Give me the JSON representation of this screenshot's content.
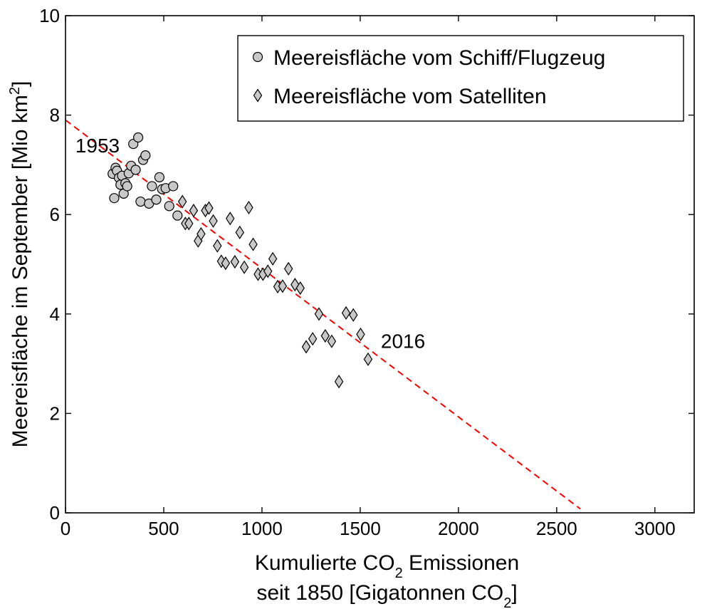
{
  "chart_data": {
    "type": "scatter",
    "xlabel_line1_parts": [
      "Kumulierte CO",
      "2",
      " Emissionen"
    ],
    "xlabel_line2_parts": [
      "seit 1850 [Gigatonnen CO",
      "2",
      "]"
    ],
    "ylabel_parts": [
      "Meereisfläche im September [Mio km",
      "2",
      "]"
    ],
    "xlim": [
      0,
      3200
    ],
    "ylim": [
      0,
      10
    ],
    "xticks": [
      0,
      500,
      1000,
      1500,
      2000,
      2500,
      3000
    ],
    "yticks": [
      0,
      2,
      4,
      6,
      8,
      10
    ],
    "xtick_labels": [
      "0",
      "500",
      "1000",
      "1500",
      "2000",
      "2500",
      "3000"
    ],
    "ytick_labels": [
      "0",
      "2",
      "4",
      "6",
      "8",
      "10"
    ],
    "legend_position": "top-right",
    "colors": {
      "marker_fill": "#c8c8c8",
      "marker_stroke": "#000000",
      "trend_line": "#ff0000",
      "axes": "#000000"
    },
    "series": [
      {
        "name": "Meereisfläche vom Schiff/Flugzeug",
        "marker": "circle",
        "points": [
          [
            240,
            6.82
          ],
          [
            248,
            6.33
          ],
          [
            255,
            6.94
          ],
          [
            262,
            6.88
          ],
          [
            272,
            6.74
          ],
          [
            280,
            6.6
          ],
          [
            288,
            6.78
          ],
          [
            296,
            6.42
          ],
          [
            305,
            6.63
          ],
          [
            314,
            6.57
          ],
          [
            322,
            6.83
          ],
          [
            334,
            6.98
          ],
          [
            345,
            7.42
          ],
          [
            357,
            6.9
          ],
          [
            370,
            7.55
          ],
          [
            382,
            6.26
          ],
          [
            395,
            7.1
          ],
          [
            407,
            7.19
          ],
          [
            425,
            6.22
          ],
          [
            440,
            6.57
          ],
          [
            462,
            6.3
          ],
          [
            478,
            6.75
          ],
          [
            492,
            6.51
          ],
          [
            510,
            6.53
          ],
          [
            528,
            6.17
          ],
          [
            548,
            6.57
          ],
          [
            570,
            5.98
          ]
        ]
      },
      {
        "name": "Meereisfläche vom Satelliten",
        "marker": "diamond",
        "points": [
          [
            595,
            6.26
          ],
          [
            610,
            5.82
          ],
          [
            628,
            5.82
          ],
          [
            652,
            6.08
          ],
          [
            675,
            5.47
          ],
          [
            690,
            5.61
          ],
          [
            712,
            6.08
          ],
          [
            730,
            6.13
          ],
          [
            752,
            5.87
          ],
          [
            773,
            5.37
          ],
          [
            793,
            5.06
          ],
          [
            815,
            5.02
          ],
          [
            838,
            5.92
          ],
          [
            862,
            5.05
          ],
          [
            887,
            5.64
          ],
          [
            910,
            4.94
          ],
          [
            933,
            6.14
          ],
          [
            955,
            5.4
          ],
          [
            980,
            4.8
          ],
          [
            1005,
            4.8
          ],
          [
            1030,
            4.86
          ],
          [
            1055,
            5.11
          ],
          [
            1080,
            4.55
          ],
          [
            1105,
            4.56
          ],
          [
            1135,
            4.91
          ],
          [
            1168,
            4.59
          ],
          [
            1195,
            4.52
          ],
          [
            1225,
            3.34
          ],
          [
            1258,
            3.5
          ],
          [
            1290,
            4.0
          ],
          [
            1322,
            3.56
          ],
          [
            1355,
            3.45
          ],
          [
            1392,
            2.64
          ],
          [
            1428,
            4.02
          ],
          [
            1465,
            3.98
          ],
          [
            1502,
            3.59
          ],
          [
            1540,
            3.09
          ]
        ]
      }
    ],
    "trend_line": {
      "style": "dashed",
      "x": [
        0,
        2620
      ],
      "y": [
        7.9,
        0.08
      ]
    },
    "annotations": [
      {
        "text": "1953",
        "x": 50,
        "y": 7.25
      },
      {
        "text": "2016",
        "x": 1605,
        "y": 3.32
      }
    ]
  }
}
